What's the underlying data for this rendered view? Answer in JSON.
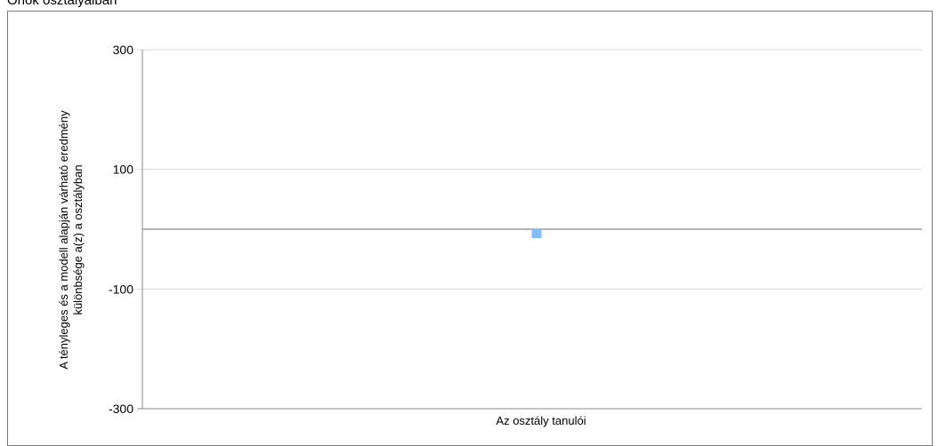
{
  "page": {
    "title": "Önök osztályaiban"
  },
  "chart_data": {
    "type": "bar",
    "title": "Önök osztályaiban",
    "xlabel": "Az osztály tanulói",
    "ylabel_lines": [
      "A tényleges és a modell alapján várható eredmény",
      "különbsége a(z) a osztályban"
    ],
    "ylim": [
      -300,
      300
    ],
    "yticks": [
      300,
      100,
      -100,
      -300
    ],
    "grid": true,
    "zero_line": true,
    "bar_color": "#7fbfff",
    "values": [
      -15
    ]
  }
}
